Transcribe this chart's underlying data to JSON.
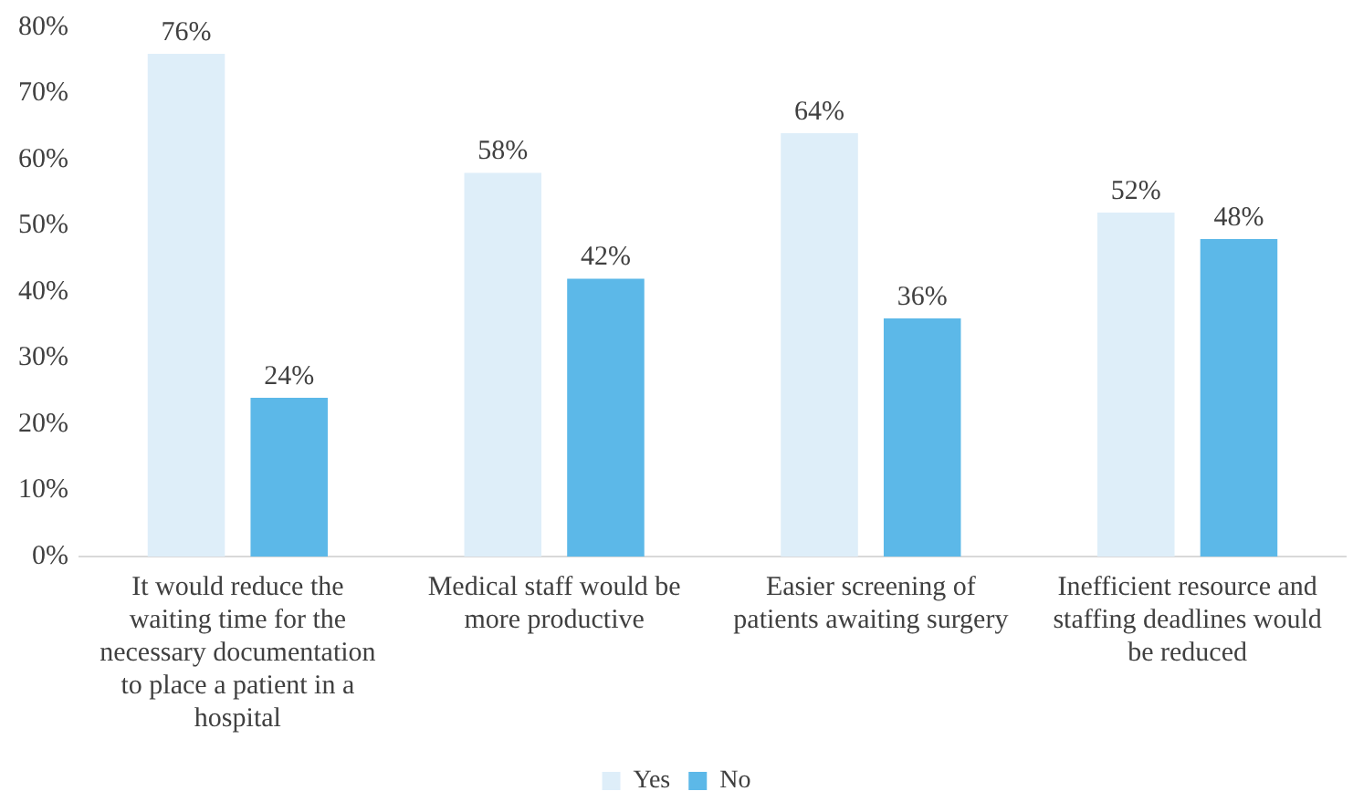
{
  "chart_data": {
    "type": "bar",
    "categories": [
      "It would reduce the waiting time for the necessary documentation to place a patient in a hospital",
      "Medical staff would be more productive",
      "Easier screening of patients awaiting surgery",
      "Inefficient resource and staffing deadlines would be reduced"
    ],
    "series": [
      {
        "name": "Yes",
        "color": "#deeef9",
        "values": [
          76,
          58,
          64,
          52
        ],
        "value_labels": [
          "76%",
          "58%",
          "64%",
          "52%"
        ]
      },
      {
        "name": "No",
        "color": "#5cb8e8",
        "values": [
          24,
          42,
          36,
          48
        ],
        "value_labels": [
          "24%",
          "42%",
          "36%",
          "48%"
        ]
      }
    ],
    "ylim": [
      0,
      80
    ],
    "yticks": [
      {
        "value": 0,
        "label": "0%"
      },
      {
        "value": 10,
        "label": "10%"
      },
      {
        "value": 20,
        "label": "20%"
      },
      {
        "value": 30,
        "label": "30%"
      },
      {
        "value": 40,
        "label": "40%"
      },
      {
        "value": 50,
        "label": "50%"
      },
      {
        "value": 60,
        "label": "60%"
      },
      {
        "value": 70,
        "label": "70%"
      },
      {
        "value": 80,
        "label": "80%"
      }
    ],
    "grid": false,
    "legend": "bottom"
  }
}
